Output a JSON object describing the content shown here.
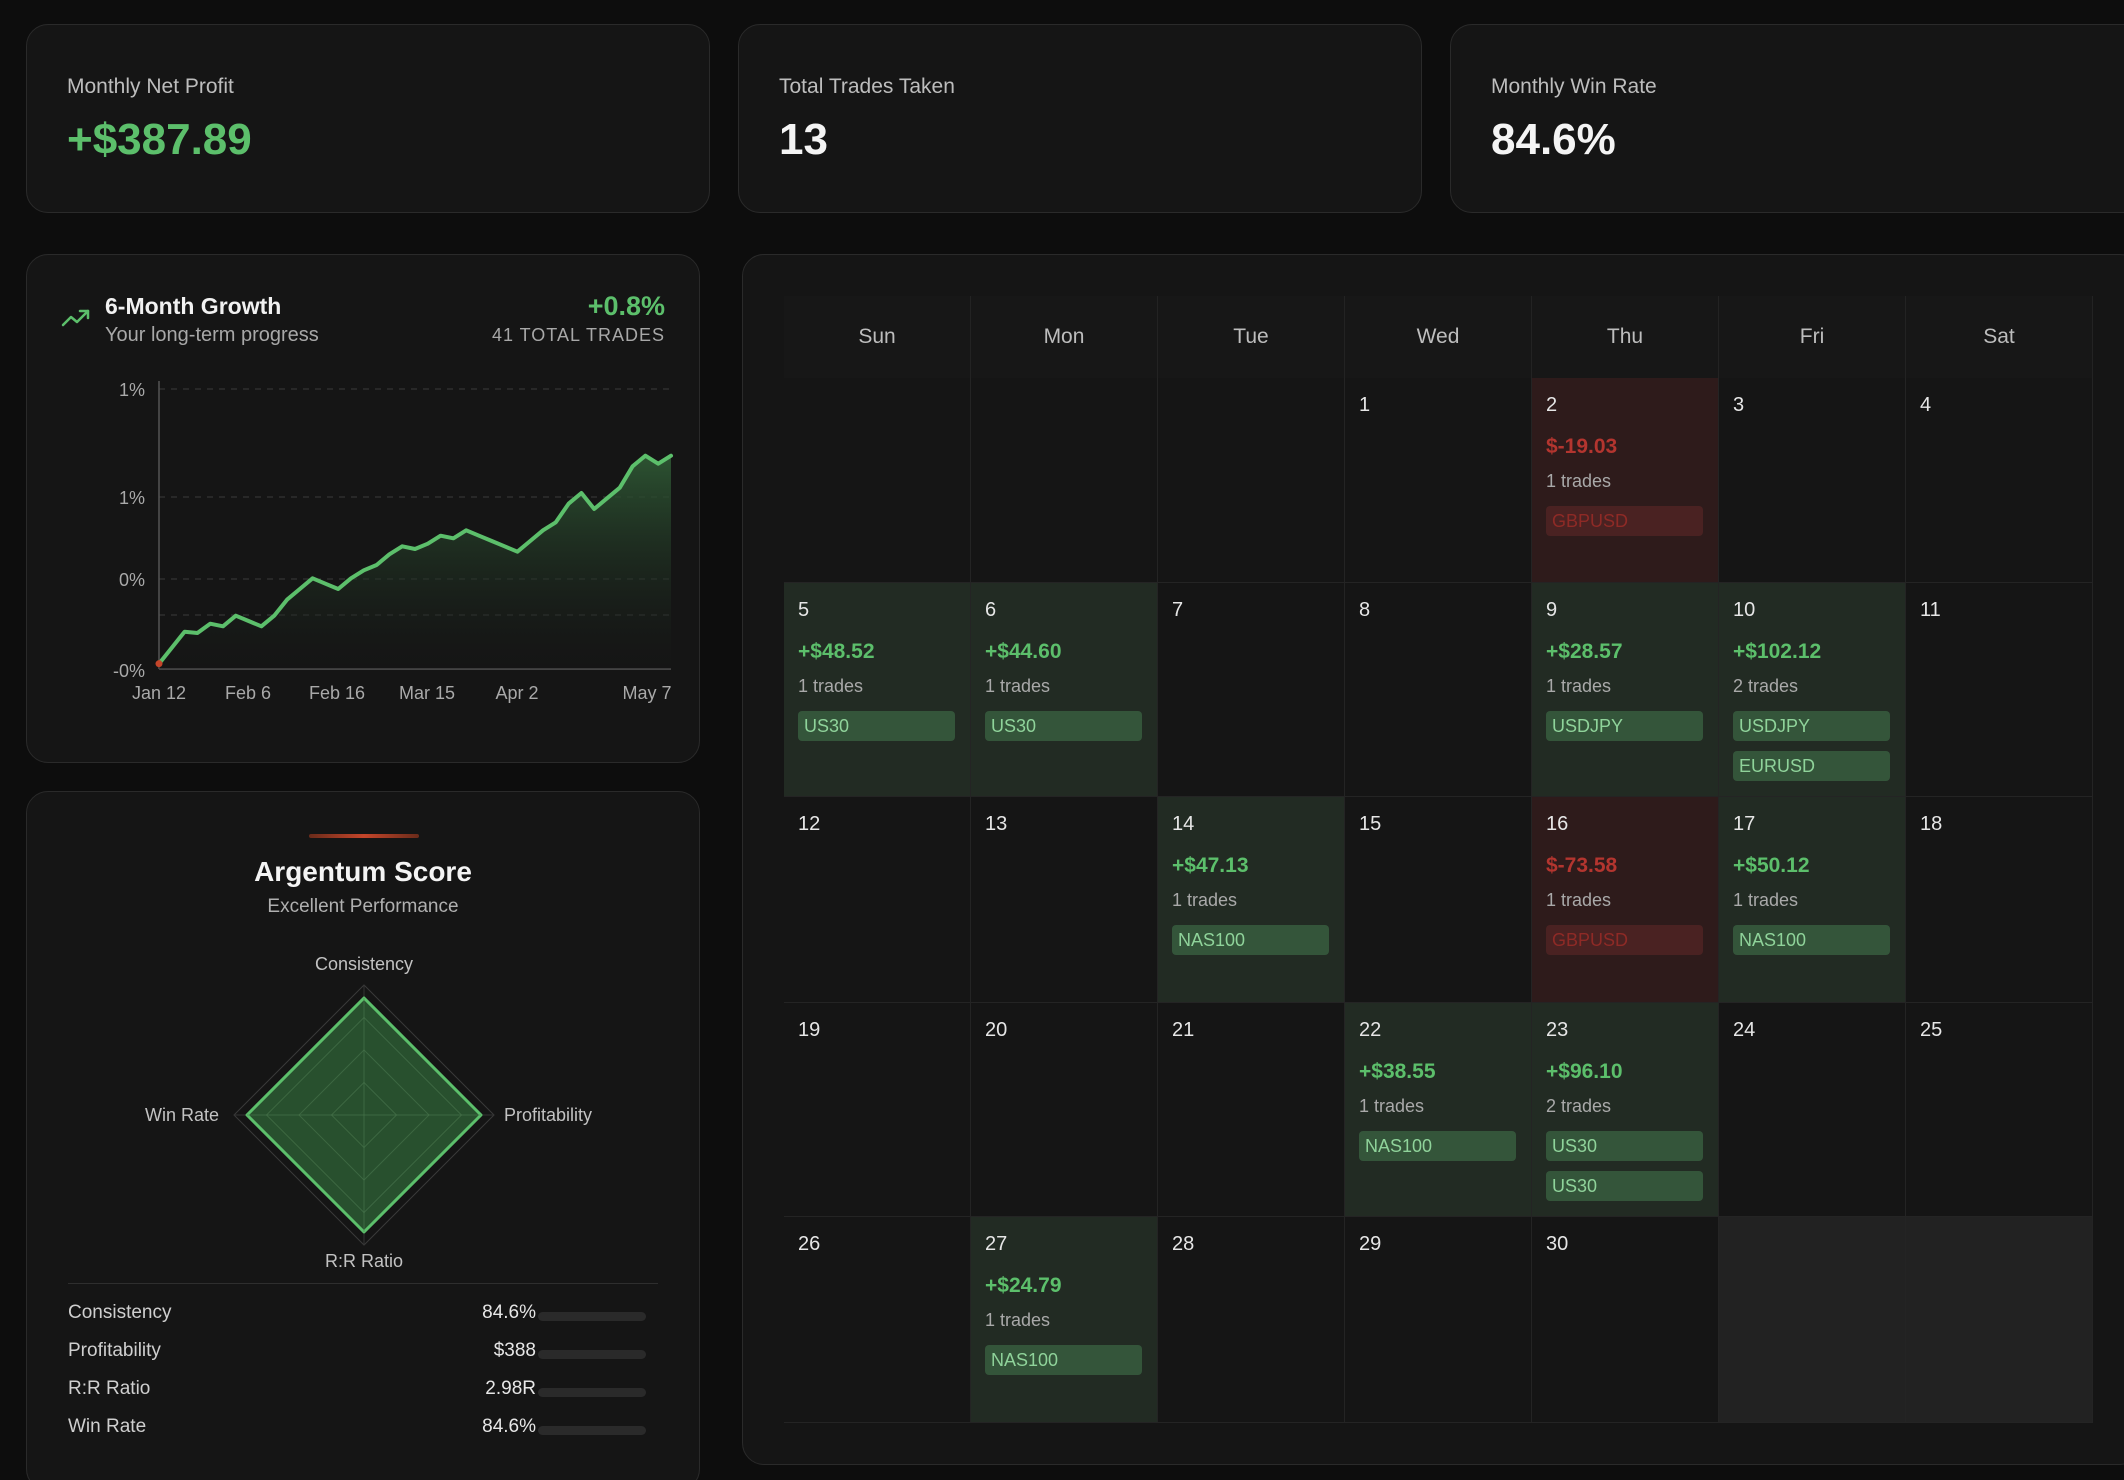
{
  "stats": [
    {
      "label": "Monthly Net Profit",
      "value": "+$387.89",
      "positive": true
    },
    {
      "label": "Total Trades Taken",
      "value": "13",
      "positive": false
    },
    {
      "label": "Monthly Win Rate",
      "value": "84.6%",
      "positive": false
    }
  ],
  "growth": {
    "title": "6-Month Growth",
    "subtitle": "Your long-term progress",
    "change": "+0.8%",
    "total_trades": "41 TOTAL TRADES",
    "icon": "trend-up-icon",
    "accent": "#5cbf6b"
  },
  "chart_data": {
    "type": "area",
    "title": "6-Month Growth",
    "xlabel": "",
    "ylabel": "",
    "y_tick_labels": [
      "1%",
      "1%",
      "0%",
      "-0%"
    ],
    "x_tick_labels": [
      "Jan 12",
      "Feb 6",
      "Feb 16",
      "Mar 15",
      "Apr 2",
      "May 7"
    ],
    "grid": true,
    "ylim": [
      -0.1,
      0.95
    ],
    "values": [
      -0.08,
      -0.02,
      0.04,
      0.035,
      0.07,
      0.06,
      0.1,
      0.08,
      0.06,
      0.1,
      0.16,
      0.2,
      0.24,
      0.22,
      0.2,
      0.24,
      0.27,
      0.29,
      0.33,
      0.36,
      0.35,
      0.37,
      0.4,
      0.39,
      0.42,
      0.4,
      0.38,
      0.36,
      0.34,
      0.38,
      0.42,
      0.45,
      0.52,
      0.56,
      0.5,
      0.54,
      0.58,
      0.66,
      0.7,
      0.67,
      0.7
    ]
  },
  "score": {
    "title": "Argentum Score",
    "subtitle": "Excellent Performance",
    "axes": [
      "Consistency",
      "Profitability",
      "R:R Ratio",
      "Win Rate"
    ],
    "radar_values": [
      0.9,
      0.9,
      0.9,
      0.9
    ],
    "metrics": [
      {
        "name": "Consistency",
        "value": "84.6%",
        "level": 0.0
      },
      {
        "name": "Profitability",
        "value": "$388",
        "level": 0.0
      },
      {
        "name": "R:R Ratio",
        "value": "2.98R",
        "level": 0.0
      },
      {
        "name": "Win Rate",
        "value": "84.6%",
        "level": 0.0
      }
    ]
  },
  "calendar": {
    "weekdays": [
      "Sun",
      "Mon",
      "Tue",
      "Wed",
      "Thu",
      "Fri",
      "Sat"
    ],
    "start_offset": 3,
    "days": [
      {
        "day": "1"
      },
      {
        "day": "2",
        "pnl": "$-19.03",
        "trades": "1 trades",
        "tags": [
          "GBPUSD"
        ],
        "result": "loss"
      },
      {
        "day": "3"
      },
      {
        "day": "4"
      },
      {
        "day": "5",
        "pnl": "+$48.52",
        "trades": "1 trades",
        "tags": [
          "US30"
        ],
        "result": "win"
      },
      {
        "day": "6",
        "pnl": "+$44.60",
        "trades": "1 trades",
        "tags": [
          "US30"
        ],
        "result": "win"
      },
      {
        "day": "7"
      },
      {
        "day": "8"
      },
      {
        "day": "9",
        "pnl": "+$28.57",
        "trades": "1 trades",
        "tags": [
          "USDJPY"
        ],
        "result": "win"
      },
      {
        "day": "10",
        "pnl": "+$102.12",
        "trades": "2 trades",
        "tags": [
          "USDJPY",
          "EURUSD"
        ],
        "result": "win"
      },
      {
        "day": "11"
      },
      {
        "day": "12"
      },
      {
        "day": "13"
      },
      {
        "day": "14",
        "pnl": "+$47.13",
        "trades": "1 trades",
        "tags": [
          "NAS100"
        ],
        "result": "win"
      },
      {
        "day": "15"
      },
      {
        "day": "16",
        "pnl": "$-73.58",
        "trades": "1 trades",
        "tags": [
          "GBPUSD"
        ],
        "result": "loss"
      },
      {
        "day": "17",
        "pnl": "+$50.12",
        "trades": "1 trades",
        "tags": [
          "NAS100"
        ],
        "result": "win"
      },
      {
        "day": "18"
      },
      {
        "day": "19"
      },
      {
        "day": "20"
      },
      {
        "day": "21"
      },
      {
        "day": "22",
        "pnl": "+$38.55",
        "trades": "1 trades",
        "tags": [
          "NAS100"
        ],
        "result": "win"
      },
      {
        "day": "23",
        "pnl": "+$96.10",
        "trades": "2 trades",
        "tags": [
          "US30",
          "US30"
        ],
        "result": "win"
      },
      {
        "day": "24"
      },
      {
        "day": "25"
      },
      {
        "day": "26"
      },
      {
        "day": "27",
        "pnl": "+$24.79",
        "trades": "1 trades",
        "tags": [
          "NAS100"
        ],
        "result": "win"
      },
      {
        "day": "28"
      },
      {
        "day": "29"
      },
      {
        "day": "30"
      }
    ]
  }
}
